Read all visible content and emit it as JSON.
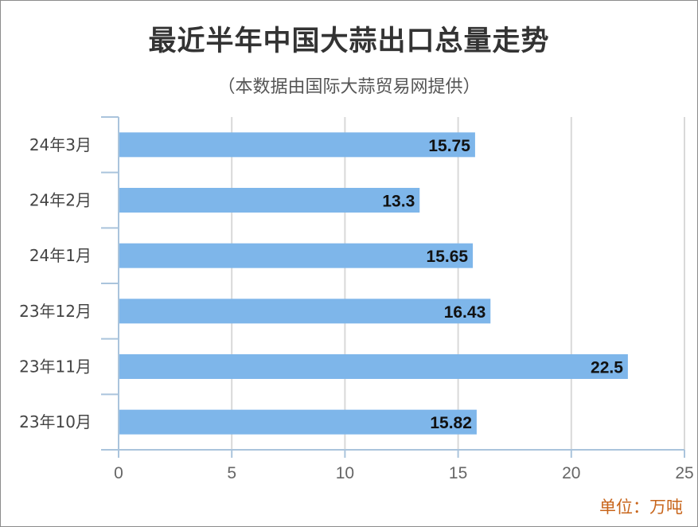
{
  "title": "最近半年中国大蒜出口总量走势",
  "subtitle": "（本数据由国际大蒜贸易网提供）",
  "unit_label": "单位：万吨",
  "colors": {
    "bar": "#7eb6ea",
    "grid": "#d9d9d9",
    "axis": "#aac4dc"
  },
  "chart_data": {
    "type": "bar",
    "orientation": "horizontal",
    "title": "最近半年中国大蒜出口总量走势",
    "subtitle": "（本数据由国际大蒜贸易网提供）",
    "categories": [
      "24年3月",
      "24年2月",
      "24年1月",
      "23年12月",
      "23年11月",
      "23年10月"
    ],
    "values": [
      15.75,
      13.3,
      15.65,
      16.43,
      22.5,
      15.82
    ],
    "value_labels": [
      "15.75",
      "13.3",
      "15.65",
      "16.43",
      "22.5",
      "15.82"
    ],
    "xlim": [
      0,
      25
    ],
    "xticks": [
      0,
      5,
      10,
      15,
      20,
      25
    ],
    "xtick_labels": [
      "0",
      "5",
      "10",
      "15",
      "20",
      "25"
    ],
    "grid": true,
    "unit": "单位：万吨"
  }
}
